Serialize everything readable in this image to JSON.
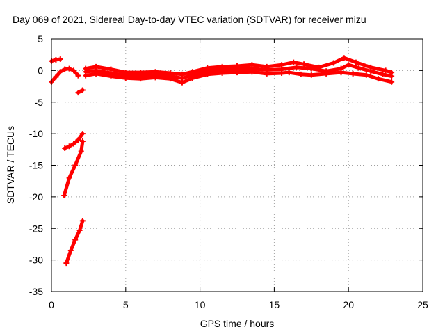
{
  "chart_data": {
    "type": "scatter",
    "title": "Day 069 of 2021, Sidereal Day-to-day VTEC variation (SDTVAR) for receiver mizu",
    "xlabel": "GPS time / hours",
    "ylabel": "SDTVAR / TECUs",
    "xlim": [
      0,
      25
    ],
    "ylim": [
      -35,
      5
    ],
    "xticks": [
      0,
      5,
      10,
      15,
      20,
      25
    ],
    "yticks": [
      5,
      0,
      -5,
      -10,
      -15,
      -20,
      -25,
      -30,
      -35
    ],
    "xtick_labels": [
      "0",
      "5",
      "10",
      "15",
      "20",
      "25"
    ],
    "ytick_labels": [
      "5",
      "0",
      "-5",
      "-10",
      "-15",
      "-20",
      "-25",
      "-30",
      "-35"
    ],
    "grid": true,
    "legend": "none",
    "color": "#ff0000",
    "series": [
      {
        "name": "main-band-upper",
        "x": [
          2.3,
          3,
          4,
          5,
          6,
          7,
          8,
          8.8,
          9.5,
          10.5,
          11.5,
          12.5,
          13.5,
          14.5,
          15.5,
          16.3,
          17,
          18,
          19,
          19.7,
          20.5,
          21.5,
          22.5,
          22.9
        ],
        "y": [
          0.3,
          0.6,
          0.2,
          -0.3,
          -0.3,
          -0.2,
          -0.4,
          -0.6,
          -0.2,
          0.4,
          0.6,
          0.7,
          0.9,
          0.6,
          0.9,
          1.3,
          1.0,
          0.5,
          1.2,
          2.0,
          1.3,
          0.5,
          0.0,
          -0.3
        ]
      },
      {
        "name": "main-band-middle",
        "x": [
          2.3,
          3,
          4,
          5,
          6,
          7,
          8,
          8.8,
          9.5,
          10.5,
          11.5,
          12.5,
          13.5,
          14.5,
          15.5,
          16.5,
          17.5,
          18.5,
          19.5,
          20,
          20.7,
          21.5,
          22.3,
          22.9
        ],
        "y": [
          -0.2,
          0.0,
          -0.4,
          -0.8,
          -0.9,
          -0.7,
          -0.9,
          -1.2,
          -0.7,
          -0.1,
          0.1,
          0.2,
          0.3,
          0.1,
          0.2,
          0.5,
          0.3,
          -0.1,
          0.3,
          0.9,
          0.4,
          -0.1,
          -0.6,
          -0.9
        ]
      },
      {
        "name": "main-band-lower",
        "x": [
          2.3,
          3,
          4,
          5,
          6,
          7,
          8,
          8.8,
          9.5,
          10.5,
          11.5,
          12.5,
          13.5,
          14.5,
          15.5,
          16,
          16.8,
          17.5,
          18.5,
          19.5,
          20.3,
          21.2,
          22,
          22.9
        ],
        "y": [
          -0.8,
          -0.5,
          -0.9,
          -1.2,
          -1.3,
          -1.1,
          -1.3,
          -1.9,
          -1.2,
          -0.6,
          -0.4,
          -0.3,
          -0.2,
          -0.5,
          -0.4,
          -0.3,
          -0.6,
          -0.7,
          -0.5,
          -0.3,
          -0.5,
          -0.7,
          -1.3,
          -1.8
        ]
      },
      {
        "name": "early-wave",
        "x": [
          0,
          0.3,
          0.6,
          0.9,
          1.2,
          1.5,
          1.8
        ],
        "y": [
          -1.8,
          -1.0,
          -0.2,
          0.2,
          0.3,
          0.0,
          -0.8
        ]
      },
      {
        "name": "early-high",
        "x": [
          0,
          0.3,
          0.6
        ],
        "y": [
          1.5,
          1.7,
          1.8
        ]
      },
      {
        "name": "short-dip",
        "x": [
          1.8,
          2.1
        ],
        "y": [
          -3.5,
          -3.1
        ]
      },
      {
        "name": "drop-a",
        "x": [
          0.9,
          1.2,
          1.5,
          1.8,
          2.1
        ],
        "y": [
          -12.3,
          -12.0,
          -11.6,
          -11.0,
          -10.0
        ]
      },
      {
        "name": "drop-b",
        "x": [
          0.85,
          1.2,
          1.6,
          2.0,
          2.1
        ],
        "y": [
          -19.8,
          -17.0,
          -15.0,
          -12.8,
          -11.2
        ]
      },
      {
        "name": "drop-c",
        "x": [
          1.0,
          1.3,
          1.6,
          1.9,
          2.1
        ],
        "y": [
          -30.5,
          -28.5,
          -26.8,
          -25.3,
          -23.8
        ]
      }
    ]
  }
}
